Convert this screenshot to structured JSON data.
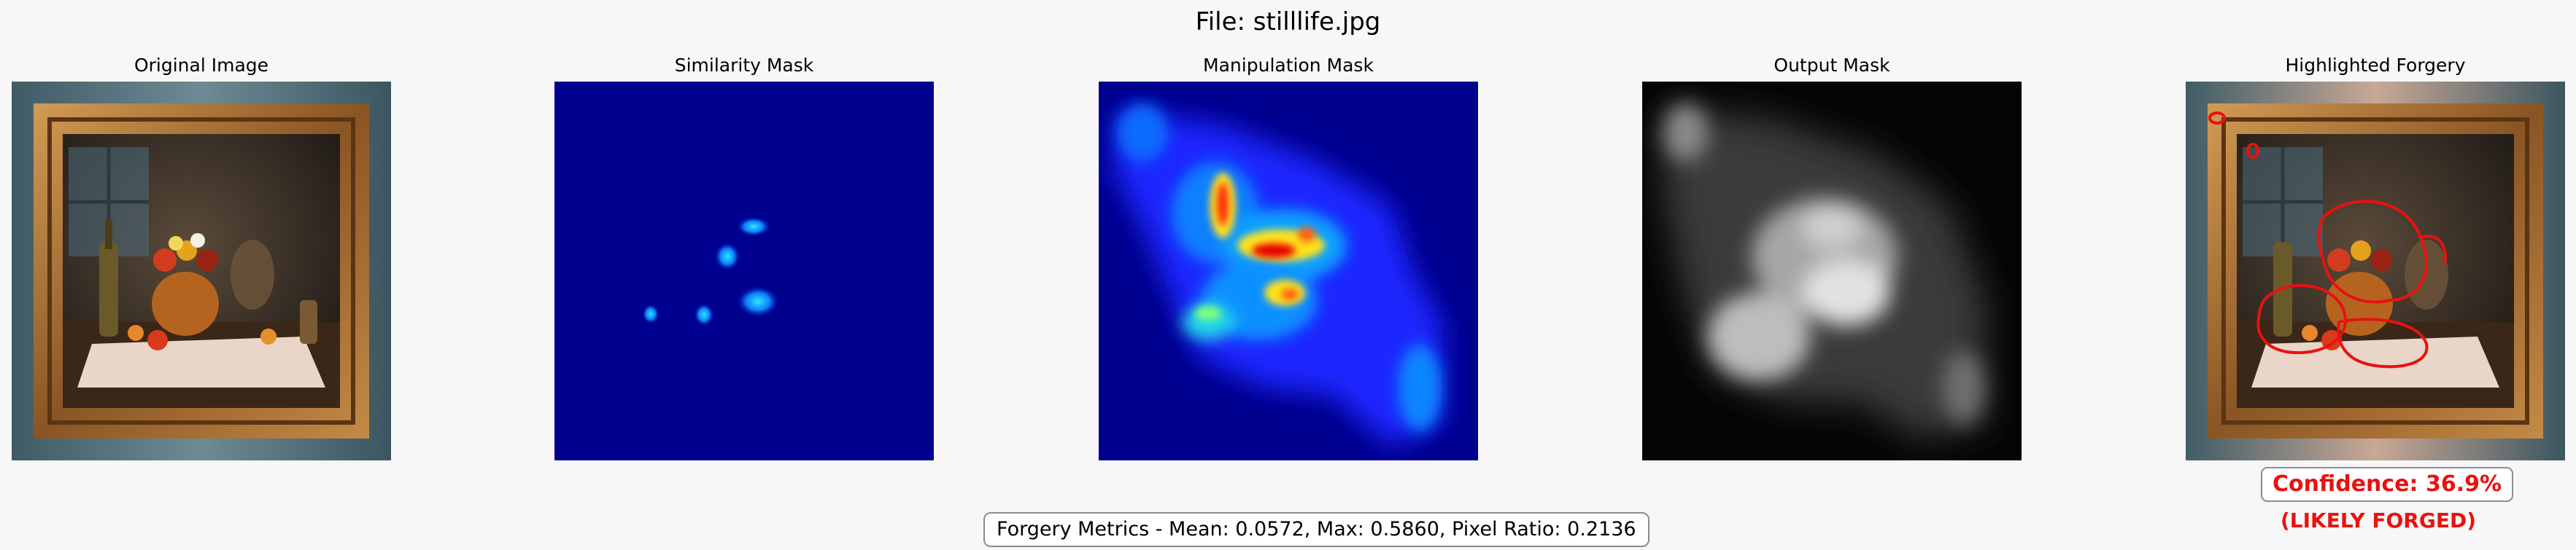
{
  "figure": {
    "title": "File: stilllife.jpg"
  },
  "panels": [
    {
      "title": "Original Image"
    },
    {
      "title": "Similarity Mask"
    },
    {
      "title": "Manipulation Mask"
    },
    {
      "title": "Output Mask"
    },
    {
      "title": "Highlighted Forgery"
    }
  ],
  "results": {
    "confidence_text": "Confidence: 36.9%",
    "verdict_text": "(LIKELY FORGED)",
    "metrics_text": "Forgery Metrics - Mean: 0.0572, Max: 0.5860, Pixel Ratio: 0.2136"
  },
  "colors": {
    "forgery_red": "#e8120f",
    "mask_background_blue": "#00008f",
    "frame_gold": "#b07a3a"
  }
}
